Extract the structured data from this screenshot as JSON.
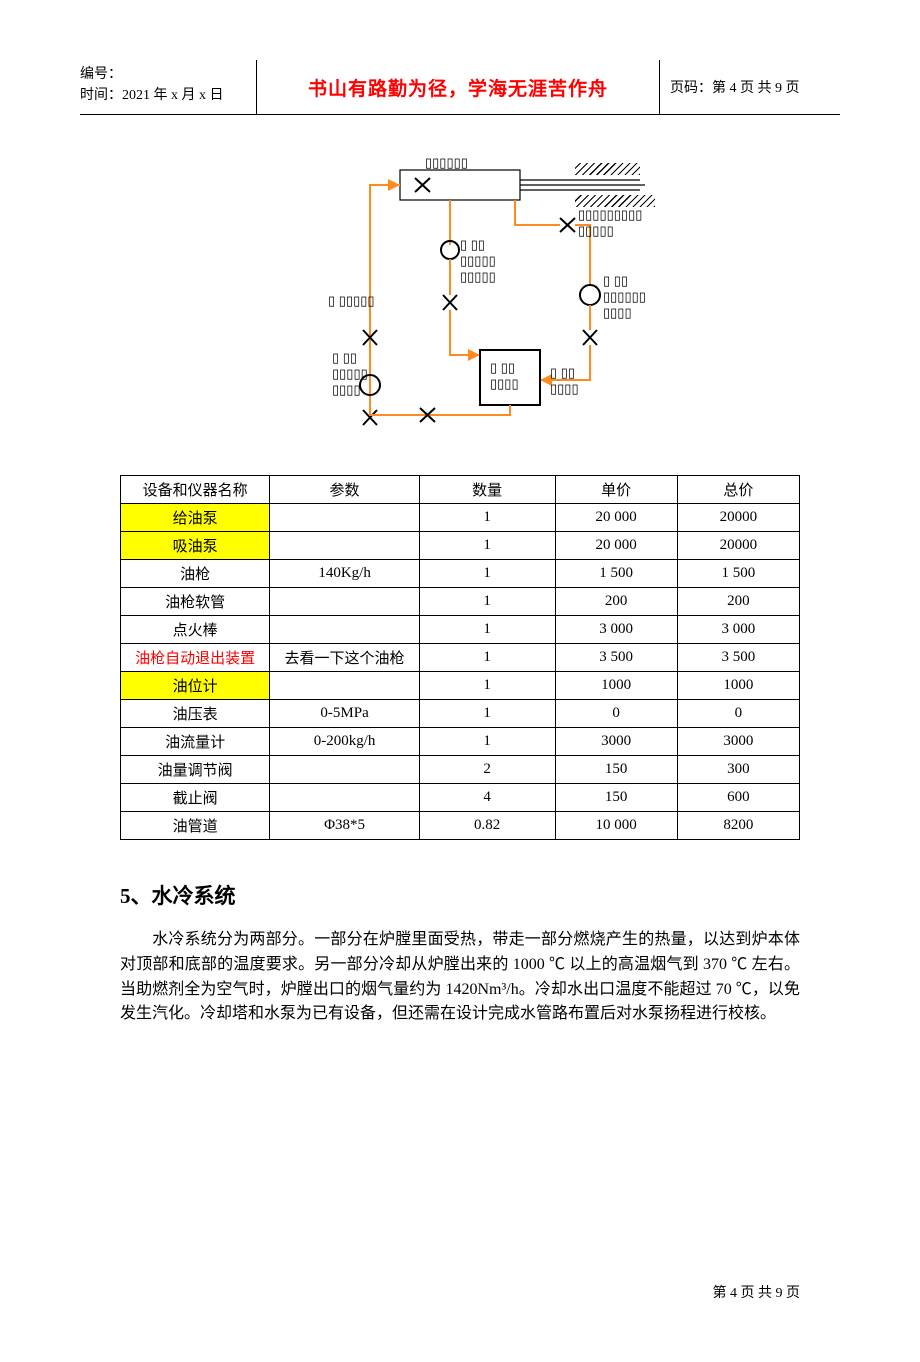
{
  "header": {
    "number_label": "编号：",
    "date_label": "时间：2021 年 x 月 x 日",
    "motto": "书山有路勤为径，学海无涯苦作舟",
    "page_label": "页码：第 4 页 共 9 页"
  },
  "diagram": {
    "placeholders_note": "boxed mojibake labels shown as placeholder glyph runs",
    "colors": {
      "pipe": "#ff8a1f",
      "stroke": "#000000"
    }
  },
  "table": {
    "columns": [
      "设备和仪器名称",
      "参数",
      "数量",
      "单价",
      "总价"
    ],
    "rows": [
      {
        "cells": [
          "给油泵",
          "",
          "1",
          "20 000",
          "20000"
        ],
        "name_class": "hl-yellow"
      },
      {
        "cells": [
          "吸油泵",
          "",
          "1",
          "20 000",
          "20000"
        ],
        "name_class": "hl-yellow"
      },
      {
        "cells": [
          "油枪",
          "140Kg/h",
          "1",
          "1 500",
          "1 500"
        ],
        "name_class": ""
      },
      {
        "cells": [
          "油枪软管",
          "",
          "1",
          "200",
          "200"
        ],
        "name_class": ""
      },
      {
        "cells": [
          "点火棒",
          "",
          "1",
          "3 000",
          "3 000"
        ],
        "name_class": ""
      },
      {
        "cells": [
          "油枪自动退出装置",
          "去看一下这个油枪",
          "1",
          "3 500",
          "3 500"
        ],
        "name_class": "tx-red"
      },
      {
        "cells": [
          "油位计",
          "",
          "1",
          "1000",
          "1000"
        ],
        "name_class": "hl-yellow"
      },
      {
        "cells": [
          "油压表",
          "0-5MPa",
          "1",
          "0",
          "0"
        ],
        "name_class": ""
      },
      {
        "cells": [
          "油流量计",
          "0-200kg/h",
          "1",
          "3000",
          "3000"
        ],
        "name_class": ""
      },
      {
        "cells": [
          "油量调节阀",
          "",
          "2",
          "150",
          "300"
        ],
        "name_class": ""
      },
      {
        "cells": [
          "截止阀",
          "",
          "4",
          "150",
          "600"
        ],
        "name_class": ""
      },
      {
        "cells": [
          "油管道",
          "Φ38*5",
          "0.82",
          "10 000",
          "8200"
        ],
        "name_class": ""
      }
    ]
  },
  "section": {
    "title": "5、水冷系统",
    "body": "水冷系统分为两部分。一部分在炉膛里面受热，带走一部分燃烧产生的热量，以达到炉本体对顶部和底部的温度要求。另一部分冷却从炉膛出来的 1000 ℃ 以上的高温烟气到 370 ℃ 左右。当助燃剂全为空气时，炉膛出口的烟气量约为 1420Nm³/h。冷却水出口温度不能超过 70 ℃，以免发生汽化。冷却塔和水泵为已有设备，但还需在设计完成水管路布置后对水泵扬程进行校核。"
  },
  "footer": {
    "text": "第 4 页 共 9 页"
  }
}
